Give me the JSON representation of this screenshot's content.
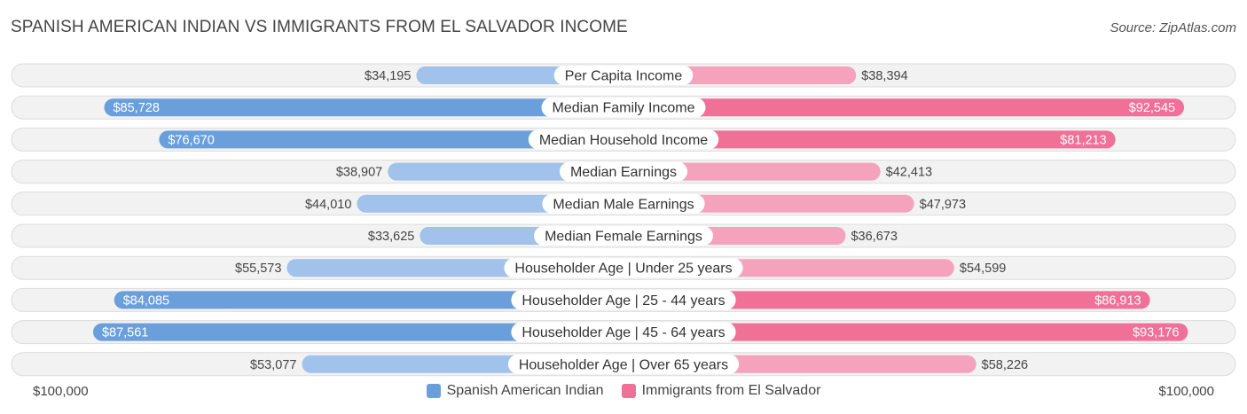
{
  "title": "SPANISH AMERICAN INDIAN VS IMMIGRANTS FROM EL SALVADOR INCOME",
  "source": "Source: ZipAtlas.com",
  "colors": {
    "left_strong": "#6a9fdc",
    "left_light": "#a1c2ea",
    "right_strong": "#f07098",
    "right_light": "#f5a2bd"
  },
  "chart_data": {
    "type": "bar",
    "orientation": "horizontal-diverging",
    "xlim": [
      0,
      100000
    ],
    "axis_labels": {
      "left": "$100,000",
      "right": "$100,000"
    },
    "categories": [
      "Per Capita Income",
      "Median Family Income",
      "Median Household Income",
      "Median Earnings",
      "Median Male Earnings",
      "Median Female Earnings",
      "Householder Age | Under 25 years",
      "Householder Age | 25 - 44 years",
      "Householder Age | 45 - 64 years",
      "Householder Age | Over 65 years"
    ],
    "series": [
      {
        "name": "Spanish American Indian",
        "values": [
          34195,
          85728,
          76670,
          38907,
          44010,
          33625,
          55573,
          84085,
          87561,
          53077
        ],
        "labels": [
          "$34,195",
          "$85,728",
          "$76,670",
          "$38,907",
          "$44,010",
          "$33,625",
          "$55,573",
          "$84,085",
          "$87,561",
          "$53,077"
        ]
      },
      {
        "name": "Immigrants from El Salvador",
        "values": [
          38394,
          92545,
          81213,
          42413,
          47973,
          36673,
          54599,
          86913,
          93176,
          58226
        ],
        "labels": [
          "$38,394",
          "$92,545",
          "$81,213",
          "$42,413",
          "$47,973",
          "$36,673",
          "$54,599",
          "$86,913",
          "$93,176",
          "$58,226"
        ]
      }
    ],
    "legend_position": "bottom-center"
  }
}
